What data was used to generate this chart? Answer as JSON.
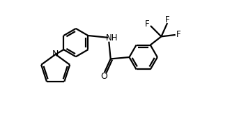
{
  "bg_color": "#ffffff",
  "line_color": "#000000",
  "line_width": 1.6,
  "font_size": 8.5,
  "figsize": [
    3.53,
    1.85
  ],
  "dpi": 100,
  "xlim": [
    0.0,
    7.0
  ],
  "ylim": [
    0.0,
    3.8
  ]
}
